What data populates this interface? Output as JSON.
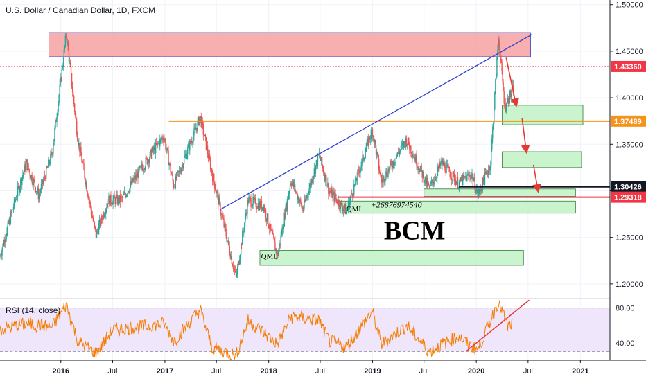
{
  "chart_data": {
    "type": "candlestick",
    "title": "U.S. Dollar / Canadian Dollar, 1D, FXCM",
    "y_axis": {
      "ticks": [
        "1.50000",
        "1.45000",
        "1.40000",
        "1.35000",
        "1.30000",
        "1.25000",
        "1.20000"
      ],
      "range": [
        1.185,
        1.505
      ]
    },
    "x_axis": {
      "ticks": [
        "2016",
        "Jul",
        "2017",
        "Jul",
        "2018",
        "Jul",
        "2019",
        "Jul",
        "2020",
        "Jul",
        "2021"
      ],
      "range": [
        "2015-06-01",
        "2021-04-15"
      ]
    },
    "price_labels": [
      {
        "value": "1.43360",
        "price": 1.4336,
        "color": "#f23645"
      },
      {
        "value": "1.37489",
        "price": 1.37489,
        "color": "#f7931a"
      },
      {
        "value": "1.30426",
        "price": 1.30426,
        "color": "#131722"
      },
      {
        "value": "1.29318",
        "price": 1.29318,
        "color": "#f23645"
      }
    ],
    "horizontal_lines": [
      {
        "price": 1.4336,
        "style": "dotted",
        "color": "#f23645",
        "from": "2015-06-01",
        "to": "2021-04-15"
      },
      {
        "price": 1.37489,
        "style": "solid",
        "color": "#f7931a",
        "from": "2017-01-15",
        "to": "2021-04-15"
      },
      {
        "price": 1.30426,
        "style": "solid",
        "color": "#131722",
        "from": "2019-11-01",
        "to": "2021-04-15"
      },
      {
        "price": 1.29318,
        "style": "solid",
        "color": "#f23645",
        "from": "2018-09-01",
        "to": "2021-04-15"
      }
    ],
    "trendline": {
      "from": [
        "2017-07-15",
        1.28
      ],
      "to": [
        "2020-07-15",
        1.468
      ],
      "color": "#2d3fcf"
    },
    "zones": [
      {
        "kind": "supply",
        "from": "2015-11-20",
        "to": "2020-07-10",
        "top": 1.47,
        "bottom": 1.444,
        "color": "#f7a1a1"
      },
      {
        "kind": "demand",
        "from": "2020-04-01",
        "to": "2021-01-10",
        "top": 1.392,
        "bottom": 1.371,
        "color": "#bff2c4"
      },
      {
        "kind": "demand",
        "from": "2020-04-01",
        "to": "2021-01-05",
        "top": 1.342,
        "bottom": 1.325,
        "color": "#bff2c4"
      },
      {
        "kind": "demand",
        "from": "2019-07-01",
        "to": "2020-12-15",
        "top": 1.302,
        "bottom": 1.294,
        "color": "#bff2c4"
      },
      {
        "kind": "demand",
        "from": "2018-09-10",
        "to": "2020-12-15",
        "top": 1.289,
        "bottom": 1.276,
        "color": "#bff2c4"
      },
      {
        "kind": "demand",
        "from": "2017-12-01",
        "to": "2020-06-15",
        "top": 1.236,
        "bottom": 1.22,
        "color": "#bff2c4"
      }
    ],
    "arrows": [
      {
        "from": [
          "2020-04-15",
          1.443
        ],
        "to": [
          "2020-05-20",
          1.392
        ]
      },
      {
        "from": [
          "2020-06-10",
          1.378
        ],
        "to": [
          "2020-06-25",
          1.342
        ]
      },
      {
        "from": [
          "2020-07-20",
          1.328
        ],
        "to": [
          "2020-08-05",
          1.3
        ]
      }
    ],
    "annotations": [
      {
        "text": "QML",
        "at": [
          "2018-10-01",
          1.278
        ]
      },
      {
        "text": "QML",
        "at": [
          "2017-12-05",
          1.227
        ]
      },
      {
        "text": "+26876974540",
        "at": [
          "2018-12-25",
          1.282
        ]
      },
      {
        "text": "BCM",
        "at": [
          "2019-02-10",
          1.248
        ]
      }
    ],
    "price_path": [
      [
        "2015-06-01",
        1.23
      ],
      [
        "2015-07-15",
        1.28
      ],
      [
        "2015-09-01",
        1.33
      ],
      [
        "2015-10-15",
        1.295
      ],
      [
        "2015-12-01",
        1.34
      ],
      [
        "2016-01-20",
        1.469
      ],
      [
        "2016-03-01",
        1.355
      ],
      [
        "2016-05-03",
        1.252
      ],
      [
        "2016-06-15",
        1.29
      ],
      [
        "2016-08-01",
        1.29
      ],
      [
        "2016-10-01",
        1.32
      ],
      [
        "2016-12-28",
        1.359
      ],
      [
        "2017-02-01",
        1.305
      ],
      [
        "2017-05-05",
        1.379
      ],
      [
        "2017-06-15",
        1.32
      ],
      [
        "2017-09-08",
        1.206
      ],
      [
        "2017-10-20",
        1.29
      ],
      [
        "2017-12-15",
        1.283
      ],
      [
        "2018-02-01",
        1.23
      ],
      [
        "2018-03-20",
        1.312
      ],
      [
        "2018-05-01",
        1.28
      ],
      [
        "2018-06-27",
        1.339
      ],
      [
        "2018-08-01",
        1.3
      ],
      [
        "2018-10-01",
        1.278
      ],
      [
        "2018-12-31",
        1.366
      ],
      [
        "2019-02-01",
        1.31
      ],
      [
        "2019-05-01",
        1.355
      ],
      [
        "2019-07-19",
        1.302
      ],
      [
        "2019-09-01",
        1.33
      ],
      [
        "2019-10-31",
        1.308
      ],
      [
        "2019-12-15",
        1.318
      ],
      [
        "2020-01-07",
        1.295
      ],
      [
        "2020-02-20",
        1.33
      ],
      [
        "2020-03-19",
        1.466
      ],
      [
        "2020-04-10",
        1.39
      ],
      [
        "2020-05-10",
        1.41
      ]
    ],
    "rsi": {
      "label": "RSI (14, close)",
      "ticks": [
        "80.00",
        "40.00"
      ],
      "range": [
        20,
        90
      ],
      "bands": [
        80,
        30
      ],
      "trend": {
        "from": [
          "2019-11-25",
          30
        ],
        "to": [
          "2020-07-05",
          89
        ]
      },
      "values_path": [
        [
          "2015-06-01",
          55
        ],
        [
          "2015-09-01",
          62
        ],
        [
          "2015-12-01",
          58
        ],
        [
          "2016-01-20",
          84
        ],
        [
          "2016-03-01",
          42
        ],
        [
          "2016-05-03",
          28
        ],
        [
          "2016-07-01",
          55
        ],
        [
          "2016-10-01",
          58
        ],
        [
          "2016-12-28",
          62
        ],
        [
          "2017-02-01",
          42
        ],
        [
          "2017-05-05",
          78
        ],
        [
          "2017-06-15",
          35
        ],
        [
          "2017-09-08",
          25
        ],
        [
          "2017-10-20",
          65
        ],
        [
          "2017-12-15",
          52
        ],
        [
          "2018-02-01",
          38
        ],
        [
          "2018-03-20",
          70
        ],
        [
          "2018-06-27",
          66
        ],
        [
          "2018-08-01",
          42
        ],
        [
          "2018-10-01",
          35
        ],
        [
          "2018-12-31",
          76
        ],
        [
          "2019-02-01",
          38
        ],
        [
          "2019-05-01",
          60
        ],
        [
          "2019-07-19",
          30
        ],
        [
          "2019-10-31",
          48
        ],
        [
          "2019-12-01",
          38
        ],
        [
          "2020-01-07",
          32
        ],
        [
          "2020-03-19",
          88
        ],
        [
          "2020-04-20",
          58
        ],
        [
          "2020-05-10",
          62
        ]
      ]
    }
  },
  "colors": {
    "up": "#26a69a",
    "down": "#ef5350",
    "axis_text": "#131722",
    "grid": "#f0f3fa",
    "rsi_line": "#f57c00",
    "rsi_fill": "#f0e6fb"
  }
}
